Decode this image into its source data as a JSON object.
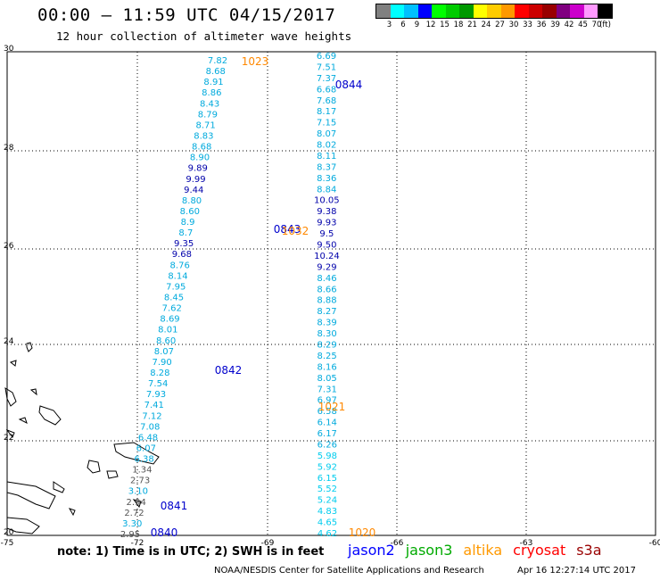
{
  "header": {
    "title": "00:00 – 11:59 UTC 04/15/2017",
    "subtitle": "12 hour collection of altimeter wave heights"
  },
  "legend": {
    "colors": [
      "#808080",
      "#00ffff",
      "#00c0ff",
      "#0000ff",
      "#00ff00",
      "#00cc00",
      "#009900",
      "#ffff00",
      "#ffcc00",
      "#ff9900",
      "#ff0000",
      "#cc0000",
      "#990000",
      "#800080",
      "#cc00cc",
      "#ff99ff",
      "#000000"
    ],
    "labels": [
      "3",
      "6",
      "9",
      "12",
      "15",
      "18",
      "21",
      "24",
      "27",
      "30",
      "33",
      "36",
      "39",
      "42",
      "45",
      "70",
      "(ft)"
    ]
  },
  "axes": {
    "lon_labels": [
      "-75",
      "-72",
      "-69",
      "-66",
      "-63",
      "-60"
    ],
    "lat_labels": [
      "30",
      "28",
      "26",
      "24",
      "22",
      "20"
    ]
  },
  "tracks": {
    "track_a": {
      "values": [
        "7.82",
        "8.68",
        "8.91",
        "8.86",
        "8.43",
        "8.79",
        "8.71",
        "8.83",
        "8.68",
        "8.90",
        "9.89",
        "9.99",
        "9.44",
        "8.80",
        "8.60",
        "8.9",
        "8.7",
        "9.35",
        "9.68",
        "8.76",
        "8.14",
        "7.95",
        "8.45",
        "7.62",
        "8.69",
        "8.01",
        "8.60",
        "8.07",
        "7.90",
        "8.28",
        "7.54",
        "7.93",
        "7.41",
        "7.12",
        "7.08",
        "6.48",
        "6.07",
        "6.38",
        "1.34",
        "2.73",
        "3.10",
        "2.94",
        "2.72",
        "3.30",
        "2.95"
      ],
      "colors": [
        "#00aadd",
        "#00aadd",
        "#00aadd",
        "#00aadd",
        "#00aadd",
        "#00aadd",
        "#00aadd",
        "#00aadd",
        "#00aadd",
        "#00aadd",
        "#0000aa",
        "#0000aa",
        "#0000aa",
        "#00aadd",
        "#00aadd",
        "#00aadd",
        "#00aadd",
        "#0000aa",
        "#0000aa",
        "#00aadd",
        "#00aadd",
        "#00aadd",
        "#00aadd",
        "#00aadd",
        "#00aadd",
        "#00aadd",
        "#00aadd",
        "#00aadd",
        "#00aadd",
        "#00aadd",
        "#00aadd",
        "#00aadd",
        "#00aadd",
        "#00aadd",
        "#00aadd",
        "#00aadd",
        "#00aadd",
        "#00aadd",
        "#555555",
        "#555555",
        "#00aadd",
        "#555555",
        "#555555",
        "#00aadd",
        "#555555"
      ],
      "times": [
        "1023",
        "0842",
        "0841",
        "0840"
      ],
      "time_colors": [
        "#ff8800",
        "#0000cc",
        "#0000cc",
        "#0000cc"
      ]
    },
    "track_b": {
      "values": [
        "6.69",
        "7.51",
        "7.37",
        "6.68",
        "7.68",
        "8.17",
        "7.15",
        "8.07",
        "8.02",
        "8.11",
        "8.37",
        "8.36",
        "8.84",
        "10.05",
        "9.38",
        "9.93",
        "9.5",
        "9.50",
        "10.24",
        "9.29",
        "8.46",
        "8.66",
        "8.88",
        "8.27",
        "8.39",
        "8.30",
        "8.29",
        "8.25",
        "8.16",
        "8.05",
        "7.31",
        "6.97",
        "6.58",
        "6.14",
        "6.17",
        "6.26",
        "5.98",
        "5.92",
        "6.15",
        "5.52",
        "5.24",
        "4.83",
        "4.65",
        "4.62"
      ],
      "colors": [
        "#00aadd",
        "#00aadd",
        "#00aadd",
        "#00aadd",
        "#00aadd",
        "#00aadd",
        "#00aadd",
        "#00aadd",
        "#00aadd",
        "#00aadd",
        "#00aadd",
        "#00aadd",
        "#00aadd",
        "#0000aa",
        "#0000aa",
        "#0000aa",
        "#0000aa",
        "#0000aa",
        "#0000aa",
        "#0000aa",
        "#00aadd",
        "#00aadd",
        "#00aadd",
        "#00aadd",
        "#00aadd",
        "#00aadd",
        "#00aadd",
        "#00aadd",
        "#00aadd",
        "#00aadd",
        "#00aadd",
        "#00aadd",
        "#00aadd",
        "#00aadd",
        "#00aadd",
        "#00aadd",
        "#00ccee",
        "#00ccee",
        "#00ccee",
        "#00ccee",
        "#00ccee",
        "#00ccee",
        "#00ccee",
        "#00ccee"
      ],
      "times": [
        "0844",
        "0843",
        "1032",
        "1021",
        "1020"
      ],
      "time_colors": [
        "#0000cc",
        "#0000cc",
        "#ff8800",
        "#ff8800",
        "#ff8800"
      ]
    }
  },
  "footer": {
    "note": "note: 1) Time is in UTC; 2) SWH is in feet",
    "satellites": [
      {
        "name": "jason2",
        "color": "#0000ff"
      },
      {
        "name": "jason3",
        "color": "#00aa00"
      },
      {
        "name": "altika",
        "color": "#ff9900"
      },
      {
        "name": "cryosat",
        "color": "#ff0000"
      },
      {
        "name": "s3a",
        "color": "#990000"
      }
    ],
    "credit": "NOAA/NESDIS Center for Satellite Applications and Research",
    "timestamp": "Apr 16 12:27:14 UTC 2017"
  }
}
